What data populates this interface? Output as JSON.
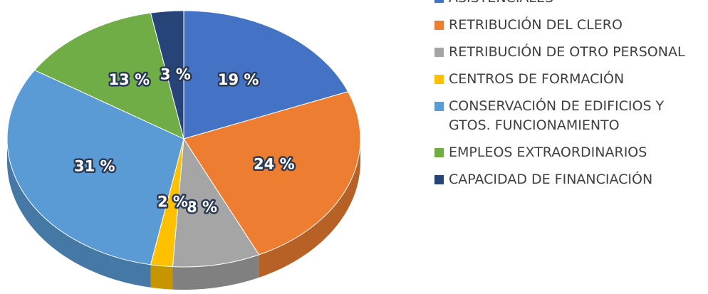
{
  "chart_data": {
    "type": "pie3d",
    "categories": [
      "ASISTENCIALES",
      "RETRIBUCIÓN DEL CLERO",
      "RETRIBUCIÓN DE OTRO PERSONAL",
      "CENTROS DE FORMACIÓN",
      "CONSERVACIÓN DE EDIFICIOS Y GTOS.  FUNCIONAMIENTO",
      "EMPLEOS EXTRAORDINARIOS",
      "CAPACIDAD DE FINANCIACIÓN"
    ],
    "values": [
      19,
      24,
      8,
      2,
      31,
      13,
      3
    ],
    "value_labels": [
      "19 %",
      "24 %",
      "8 %",
      "2 %",
      "31 %",
      "13 %",
      "3 %"
    ],
    "colors": [
      "#4472c4",
      "#ed7d31",
      "#a5a5a5",
      "#ffc000",
      "#5b9bd5",
      "#70ad47",
      "#264478"
    ],
    "legend": "right"
  }
}
